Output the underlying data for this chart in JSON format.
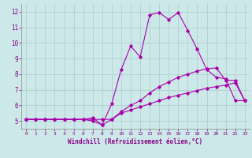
{
  "background_color": "#cce8e8",
  "grid_color": "#aacccc",
  "line_color": "#aa00aa",
  "xlabel": "Windchill (Refroidissement éolien,°C)",
  "xlim": [
    -0.5,
    23.5
  ],
  "ylim": [
    4.5,
    12.5
  ],
  "yticks": [
    5,
    6,
    7,
    8,
    9,
    10,
    11,
    12
  ],
  "xticks": [
    0,
    1,
    2,
    3,
    4,
    5,
    6,
    7,
    8,
    9,
    10,
    11,
    12,
    13,
    14,
    15,
    16,
    17,
    18,
    19,
    20,
    21,
    22,
    23
  ],
  "series": [
    {
      "x": [
        0,
        1,
        2,
        3,
        4,
        5,
        6,
        7,
        8,
        9,
        10,
        11,
        12,
        13,
        14,
        15,
        16,
        17,
        18,
        19,
        20,
        21,
        22,
        23
      ],
      "y": [
        5.1,
        5.1,
        5.1,
        5.1,
        5.1,
        5.1,
        5.1,
        5.2,
        4.75,
        5.1,
        5.5,
        5.7,
        5.9,
        6.1,
        6.3,
        6.5,
        6.65,
        6.8,
        6.95,
        7.1,
        7.2,
        7.3,
        7.45,
        6.3
      ]
    },
    {
      "x": [
        0,
        1,
        2,
        3,
        4,
        5,
        6,
        7,
        8,
        9,
        10,
        11,
        12,
        13,
        14,
        15,
        16,
        17,
        18,
        19,
        20,
        21,
        22,
        23
      ],
      "y": [
        5.1,
        5.1,
        5.1,
        5.1,
        5.1,
        5.1,
        5.1,
        5.1,
        5.1,
        5.1,
        5.6,
        6.0,
        6.3,
        6.8,
        7.2,
        7.5,
        7.8,
        8.0,
        8.2,
        8.35,
        8.4,
        7.6,
        7.6,
        6.3
      ]
    },
    {
      "x": [
        0,
        1,
        2,
        3,
        4,
        5,
        6,
        7,
        8,
        9,
        10,
        11,
        12,
        13,
        14,
        15,
        16,
        17,
        18,
        19,
        20,
        21,
        22,
        23
      ],
      "y": [
        5.1,
        5.1,
        5.1,
        5.1,
        5.1,
        5.1,
        5.1,
        5.0,
        4.75,
        6.1,
        8.3,
        9.8,
        9.1,
        11.8,
        11.95,
        11.5,
        11.95,
        10.8,
        9.6,
        8.3,
        7.8,
        7.7,
        6.3,
        6.3
      ]
    }
  ]
}
